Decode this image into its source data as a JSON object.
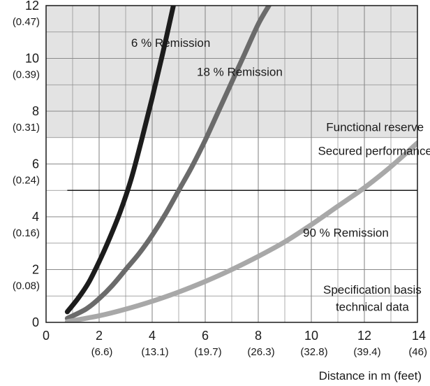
{
  "chart_data": {
    "type": "line",
    "title": "",
    "xlabel": "Distance in m (feet)",
    "ylabel": "",
    "xlim": [
      0,
      14
    ],
    "ylim": [
      0,
      12
    ],
    "grid": true,
    "x_ticks": [
      {
        "value": 0,
        "label": "0",
        "sub": ""
      },
      {
        "value": 2,
        "label": "2",
        "sub": "(6.6)"
      },
      {
        "value": 4,
        "label": "4",
        "sub": "(13.1)"
      },
      {
        "value": 6,
        "label": "6",
        "sub": "(19.7)"
      },
      {
        "value": 8,
        "label": "8",
        "sub": "(26.3)"
      },
      {
        "value": 10,
        "label": "10",
        "sub": "(32.8)"
      },
      {
        "value": 12,
        "label": "12",
        "sub": "(39.4)"
      },
      {
        "value": 14,
        "label": "14",
        "sub": "(46)"
      }
    ],
    "y_ticks": [
      {
        "value": 0,
        "label": "0",
        "sub": ""
      },
      {
        "value": 2,
        "label": "2",
        "sub": "(0.08)"
      },
      {
        "value": 4,
        "label": "4",
        "sub": "(0.16)"
      },
      {
        "value": 6,
        "label": "6",
        "sub": "(0.24)"
      },
      {
        "value": 8,
        "label": "8",
        "sub": "(0.31)"
      },
      {
        "value": 10,
        "label": "10",
        "sub": "(0.39)"
      },
      {
        "value": 12,
        "label": "12",
        "sub": "(0.47)"
      }
    ],
    "shaded_region": {
      "y_from": 7,
      "y_to": 12,
      "color": "#e3e3e3"
    },
    "reference_line": {
      "y": 5
    },
    "series": [
      {
        "name": "6 % Remission",
        "color": "#1c1c1c",
        "points": [
          [
            0.8,
            0.4
          ],
          [
            1.2,
            0.9
          ],
          [
            1.6,
            1.5
          ],
          [
            2.0,
            2.3
          ],
          [
            2.4,
            3.2
          ],
          [
            2.8,
            4.2
          ],
          [
            3.2,
            5.4
          ],
          [
            3.6,
            6.9
          ],
          [
            4.0,
            8.5
          ],
          [
            4.4,
            10.2
          ],
          [
            4.8,
            12.0
          ]
        ]
      },
      {
        "name": "18 % Remission",
        "color": "#6b6b6b",
        "points": [
          [
            0.8,
            0.15
          ],
          [
            1.5,
            0.5
          ],
          [
            2.0,
            0.9
          ],
          [
            2.5,
            1.4
          ],
          [
            3.0,
            2.0
          ],
          [
            3.5,
            2.6
          ],
          [
            4.0,
            3.3
          ],
          [
            4.5,
            4.1
          ],
          [
            5.0,
            5.0
          ],
          [
            5.5,
            5.9
          ],
          [
            6.0,
            6.9
          ],
          [
            6.5,
            8.0
          ],
          [
            7.0,
            9.1
          ],
          [
            7.5,
            10.2
          ],
          [
            8.0,
            11.3
          ],
          [
            8.4,
            12.0
          ]
        ]
      },
      {
        "name": "90 % Remission",
        "color": "#a8a8a8",
        "points": [
          [
            0.8,
            0.03
          ],
          [
            2.0,
            0.25
          ],
          [
            3.0,
            0.5
          ],
          [
            4.0,
            0.8
          ],
          [
            5.0,
            1.15
          ],
          [
            6.0,
            1.55
          ],
          [
            7.0,
            2.0
          ],
          [
            8.0,
            2.5
          ],
          [
            9.0,
            3.05
          ],
          [
            10.0,
            3.7
          ],
          [
            11.0,
            4.4
          ],
          [
            12.0,
            5.1
          ],
          [
            13.0,
            5.9
          ],
          [
            14.0,
            6.8
          ]
        ]
      }
    ],
    "annotations": [
      {
        "text": "6 % Remission",
        "x": 4.7,
        "y": 10.6
      },
      {
        "text": "18 % Remission",
        "x": 7.3,
        "y": 9.5
      },
      {
        "text": "Functional reserve",
        "x": 12.4,
        "y": 7.4
      },
      {
        "text": "Secured performance",
        "x": 12.4,
        "y": 6.5
      },
      {
        "text": "90 % Remission",
        "x": 11.3,
        "y": 3.4
      },
      {
        "text": "Specification basis",
        "x": 12.3,
        "y": 1.25
      },
      {
        "text": "technical data",
        "x": 12.3,
        "y": 0.6
      }
    ]
  }
}
